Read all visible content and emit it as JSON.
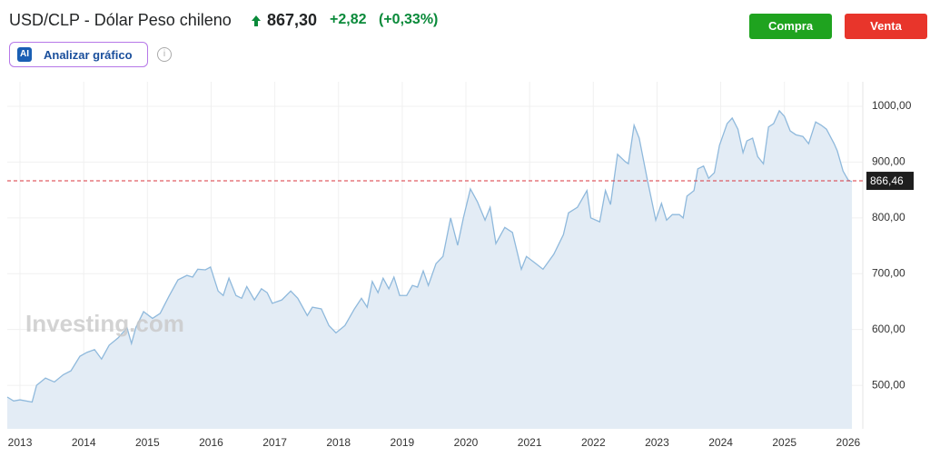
{
  "header": {
    "title": "USD/CLP - Dólar Peso chileno",
    "price": "867,30",
    "change": "+2,82",
    "change_percent": "(+0,33%)",
    "buy_button": "Compra",
    "sell_button": "Venta",
    "analyze_button": "Analizar gráfico",
    "ai_badge": "AI",
    "watermark": "Investing.com"
  },
  "chart_data": {
    "type": "area",
    "color": "#8fb9dc",
    "fill": "#e3ecf5",
    "grid": true,
    "xlim": [
      2012.8,
      2026.23
    ],
    "ylim": [
      422,
      1044
    ],
    "xticks": [
      2013,
      2014,
      2015,
      2016,
      2017,
      2018,
      2019,
      2020,
      2021,
      2022,
      2023,
      2024,
      2025,
      2026
    ],
    "yticks": [
      {
        "value": 500,
        "label": "500,00"
      },
      {
        "value": 600,
        "label": "600,00"
      },
      {
        "value": 700,
        "label": "700,00"
      },
      {
        "value": 800,
        "label": "800,00"
      },
      {
        "value": 900,
        "label": "900,00"
      },
      {
        "value": 1000,
        "label": "1000,00"
      }
    ],
    "price_line": {
      "value": 866.46,
      "label": "866,46",
      "color": "#d9363e"
    },
    "x": [
      2012.8,
      2012.9,
      2013.0,
      2013.19,
      2013.26,
      2013.4,
      2013.54,
      2013.68,
      2013.8,
      2013.94,
      2014.05,
      2014.17,
      2014.28,
      2014.4,
      2014.54,
      2014.68,
      2014.75,
      2014.82,
      2014.94,
      2015.08,
      2015.2,
      2015.34,
      2015.48,
      2015.62,
      2015.71,
      2015.79,
      2015.91,
      2015.99,
      2016.11,
      2016.19,
      2016.28,
      2016.39,
      2016.48,
      2016.56,
      2016.68,
      2016.79,
      2016.88,
      2016.96,
      2017.11,
      2017.25,
      2017.36,
      2017.51,
      2017.59,
      2017.73,
      2017.85,
      2017.96,
      2018.1,
      2018.25,
      2018.36,
      2018.45,
      2018.53,
      2018.62,
      2018.7,
      2018.79,
      2018.87,
      2018.96,
      2019.07,
      2019.16,
      2019.24,
      2019.33,
      2019.41,
      2019.53,
      2019.64,
      2019.76,
      2019.87,
      2019.96,
      2020.07,
      2020.18,
      2020.3,
      2020.38,
      2020.47,
      2020.61,
      2020.73,
      2020.87,
      2020.95,
      2021.1,
      2021.21,
      2021.38,
      2021.53,
      2021.61,
      2021.75,
      2021.9,
      2021.96,
      2022.1,
      2022.19,
      2022.27,
      2022.38,
      2022.5,
      2022.55,
      2022.64,
      2022.72,
      2022.84,
      2022.98,
      2023.07,
      2023.15,
      2023.24,
      2023.35,
      2023.41,
      2023.47,
      2023.58,
      2023.64,
      2023.73,
      2023.81,
      2023.9,
      2023.98,
      2024.1,
      2024.18,
      2024.27,
      2024.35,
      2024.41,
      2024.5,
      2024.58,
      2024.67,
      2024.75,
      2024.83,
      2024.92,
      2025.0,
      2025.09,
      2025.18,
      2025.29,
      2025.38,
      2025.49,
      2025.58,
      2025.66,
      2025.78,
      2025.83,
      2025.92,
      2026.0,
      2026.06
    ],
    "values": [
      479,
      472,
      474,
      470,
      500,
      513,
      506,
      519,
      526,
      552,
      559,
      564,
      547,
      572,
      585,
      603,
      575,
      604,
      632,
      620,
      629,
      660,
      689,
      697,
      694,
      708,
      707,
      712,
      669,
      661,
      692,
      661,
      656,
      677,
      653,
      673,
      666,
      647,
      653,
      669,
      656,
      625,
      640,
      637,
      607,
      594,
      607,
      637,
      656,
      640,
      686,
      666,
      692,
      673,
      694,
      661,
      661,
      679,
      676,
      705,
      679,
      718,
      731,
      800,
      751,
      800,
      852,
      829,
      796,
      819,
      754,
      783,
      774,
      708,
      731,
      718,
      708,
      735,
      770,
      809,
      819,
      849,
      800,
      793,
      849,
      824,
      914,
      901,
      897,
      966,
      943,
      873,
      796,
      826,
      796,
      806,
      806,
      800,
      839,
      849,
      888,
      893,
      871,
      881,
      930,
      969,
      979,
      959,
      917,
      938,
      943,
      910,
      897,
      963,
      969,
      992,
      982,
      956,
      949,
      946,
      933,
      972,
      966,
      959,
      933,
      920,
      884,
      868,
      865
    ]
  }
}
